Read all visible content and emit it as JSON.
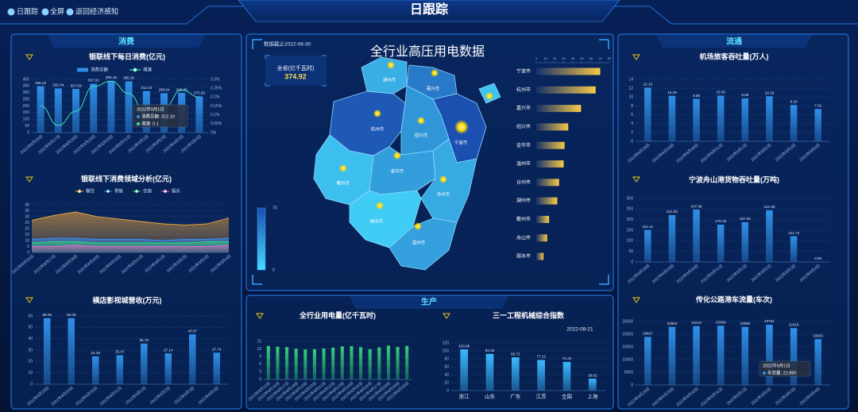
{
  "header": {
    "title": "日跟踪",
    "nav": [
      "日跟踪",
      "全屏",
      "返回经济感知"
    ]
  },
  "panels": {
    "left": "消费",
    "right": "流通",
    "bottom": "生产"
  },
  "chart_data": [
    {
      "type": "bar-line",
      "title": "银联线下每日消费(亿元)",
      "categories": [
        "2022年8月26日",
        "2022年8月27日",
        "2022年8月28日",
        "2022年8月29日",
        "2022年8月30日",
        "2022年8月31日",
        "2022年9月1日",
        "2022年9月2日",
        "2022年9月3日",
        "2022年9月4日"
      ],
      "series": [
        {
          "name": "消费总额",
          "type": "bar",
          "color": "#2f8fe8",
          "values": [
            348.22,
            332.04,
            327.63,
            367.02,
            389.16,
            385.3,
            312.1,
            295.64,
            298.06,
            272.25
          ],
          "value_labels": [
            "348.22",
            "332.04",
            "327.63",
            "367.02",
            "389.16",
            "385.30",
            "312.10",
            "295.64",
            "298.06",
            "272.25"
          ]
        },
        {
          "name": "增速",
          "type": "line",
          "axis": "y2",
          "color": "#3ee0b0",
          "values": [
            0.15,
            0.04,
            0.12,
            0.26,
            0.29,
            0.22,
            0.1,
            0.14,
            0.24,
            0.2
          ]
        }
      ],
      "ylim": [
        0,
        400
      ],
      "yticks": [
        0,
        50,
        100,
        150,
        200,
        250,
        300,
        350,
        400
      ],
      "y2lim": [
        0,
        0.3
      ],
      "y2ticks": [
        {
          "value": 0,
          "label": "0%"
        },
        {
          "value": 0.05,
          "label": "0.05%"
        },
        {
          "value": 0.1,
          "label": "0.1%"
        },
        {
          "value": 0.15,
          "label": "0.15%"
        },
        {
          "value": 0.2,
          "label": "0.2%"
        },
        {
          "value": 0.25,
          "label": "0.25%"
        },
        {
          "value": 0.3,
          "label": "0.3%"
        }
      ],
      "grid": true,
      "tooltip": {
        "title": "2022年9月1日",
        "items": [
          "消费总额: 312.10",
          "增速: 0.1"
        ]
      }
    },
    {
      "type": "area",
      "title": "银联线下消费领域分析(亿元)",
      "categories": [
        "2022年8月26日",
        "2022年8月27日",
        "2022年8月28日",
        "2022年8月29日",
        "2022年8月30日",
        "2022年8月31日",
        "2022年9月1日",
        "2022年9月2日",
        "2022年9月3日",
        "2022年9月4日"
      ],
      "series": [
        {
          "name": "餐饮",
          "color": "#e8a33d",
          "values": [
            27,
            31,
            34,
            30,
            28,
            26,
            24,
            23,
            24,
            29
          ]
        },
        {
          "name": "零售",
          "color": "#3a8ef0",
          "values": [
            11,
            12,
            12,
            11,
            11,
            11,
            10,
            11,
            11,
            12
          ]
        },
        {
          "name": "住宿",
          "color": "#35d07f",
          "values": [
            8,
            9,
            9,
            8,
            8,
            8,
            8,
            8,
            9,
            9
          ]
        },
        {
          "name": "娱乐",
          "color": "#e066c8",
          "values": [
            5,
            5,
            6,
            5,
            5,
            5,
            5,
            5,
            5,
            6
          ]
        }
      ],
      "ylim": [
        0,
        40
      ],
      "yticks": [
        0,
        5,
        10,
        15,
        20,
        25,
        30,
        35,
        40
      ],
      "grid": true
    },
    {
      "type": "bar",
      "title": "横店影视城营收(万元)",
      "categories": [
        "2022年8月28日",
        "2022年8月29日",
        "2022年8月30日",
        "2022年8月31日",
        "2022年9月1日",
        "2022年9月2日",
        "2022年9月3日",
        "2022年9月4日"
      ],
      "values": [
        58.05,
        58.05,
        24.45,
        25.47,
        35.76,
        27.14,
        43.87,
        27.74
      ],
      "color": "#2f8fe8",
      "ylim": [
        0,
        60
      ],
      "yticks": [
        0,
        10,
        20,
        30,
        40,
        50,
        60
      ],
      "grid": true
    },
    {
      "type": "map-bar",
      "title": "全行业高压用电数据",
      "subtitle": "数据截止2022-08-30",
      "total_label": "全省(亿千瓦时)",
      "total": 374.92,
      "categories": [
        "宁波市",
        "杭州市",
        "嘉兴市",
        "绍兴市",
        "金华市",
        "温州市",
        "台州市",
        "湖州市",
        "衢州市",
        "舟山市",
        "丽水市"
      ],
      "values": [
        70,
        65,
        49,
        35,
        31,
        30,
        25,
        23,
        14,
        12,
        8
      ],
      "color": "#f7c948",
      "xlim": [
        0,
        80
      ],
      "xticks": [
        0,
        10,
        20,
        30,
        40,
        50,
        60,
        70,
        80
      ],
      "visual_range": [
        0,
        70
      ],
      "visual_colors": [
        "#46dcff",
        "#1b4fb0"
      ]
    },
    {
      "type": "bar",
      "title": "全行业用电量(亿千瓦时)",
      "categories": [
        "2022年8月15日",
        "2022年8月16日",
        "2022年8月17日",
        "2022年8月18日",
        "2022年8月19日",
        "2022年8月20日",
        "2022年8月21日",
        "2022年8月22日",
        "2022年8月23日",
        "2022年8月24日",
        "2022年8月25日",
        "2022年8月26日",
        "2022年8月27日",
        "2022年8月28日",
        "2022年8月29日",
        "2022年8月30日"
      ],
      "values": [
        13.2,
        12.9,
        12.7,
        12.1,
        11.8,
        11.9,
        12.2,
        12.5,
        13.0,
        13.1,
        12.7,
        11.9,
        12.6,
        13.3,
        12.8,
        13.2
      ],
      "color": "#34d27a",
      "ylim": [
        0,
        15
      ],
      "yticks": [
        0,
        3,
        6,
        9,
        12,
        15
      ],
      "grid": true
    },
    {
      "type": "bar",
      "title": "三一工程机械综合指数",
      "date": "2022-08-21",
      "categories": [
        "浙江",
        "山东",
        "广东",
        "江苏",
        "全国",
        "上海"
      ],
      "values": [
        103.86,
        92.45,
        83.73,
        77.12,
        72.22,
        29.81
      ],
      "color": "#3ab8ff",
      "ylim": [
        0,
        120
      ],
      "yticks": [
        0,
        20,
        40,
        60,
        80,
        100,
        120
      ],
      "grid": true
    },
    {
      "type": "bar",
      "title": "机场旅客吞吐量(万人)",
      "categories": [
        "2022年8月28日",
        "2022年8月29日",
        "2022年8月30日",
        "2022年8月31日",
        "2022年9月1日",
        "2022年9月2日",
        "2022年9月3日",
        "2022年9月4日"
      ],
      "values": [
        12.13,
        10.29,
        9.59,
        10.35,
        9.69,
        10.19,
        8.2,
        7.31
      ],
      "value_labels": [
        "12.13",
        "10.29",
        "9.59",
        "10.35",
        "9.69",
        "10.19",
        "8.20",
        "7.31"
      ],
      "color": "#2f8fe8",
      "ylim": [
        0,
        14
      ],
      "yticks": [
        0,
        2,
        4,
        6,
        8,
        10,
        12,
        14
      ],
      "grid": true
    },
    {
      "type": "bar",
      "title": "宁波舟山港货物吞吐量(万吨)",
      "categories": [
        "2022年8月28日",
        "2022年8月29日",
        "2022年8月30日",
        "2022年8月31日",
        "2022年9月1日",
        "2022年9月2日",
        "2022年9月3日",
        "2022年9月4日"
      ],
      "values": [
        151.11,
        221.6,
        247.08,
        176.19,
        187.94,
        244.3,
        121.73,
        0.0
      ],
      "value_labels": [
        "151.11",
        "221.60",
        "247.08",
        "176.19",
        "187.94",
        "244.30",
        "121.73",
        "0.00"
      ],
      "color": "#2f8fe8",
      "ylim": [
        0,
        300
      ],
      "yticks": [
        0,
        50,
        100,
        150,
        200,
        250,
        300
      ],
      "grid": true
    },
    {
      "type": "bar",
      "title": "传化公路港车流量(车次)",
      "categories": [
        "2022年8月28日",
        "2022年8月29日",
        "2022年8月30日",
        "2022年8月31日",
        "2022年9月1日",
        "2022年9月2日",
        "2022年9月3日",
        "2022年9月4日"
      ],
      "values": [
        18927,
        22894,
        23210,
        23360,
        22890,
        23751,
        22419,
        18053
      ],
      "color": "#2f8fe8",
      "ylim": [
        0,
        25000
      ],
      "yticks": [
        0,
        5000,
        10000,
        15000,
        20000,
        25000
      ],
      "grid": true,
      "tooltip": {
        "title": "2022年9月1日",
        "items": [
          "车流量: 22,890"
        ]
      }
    }
  ]
}
